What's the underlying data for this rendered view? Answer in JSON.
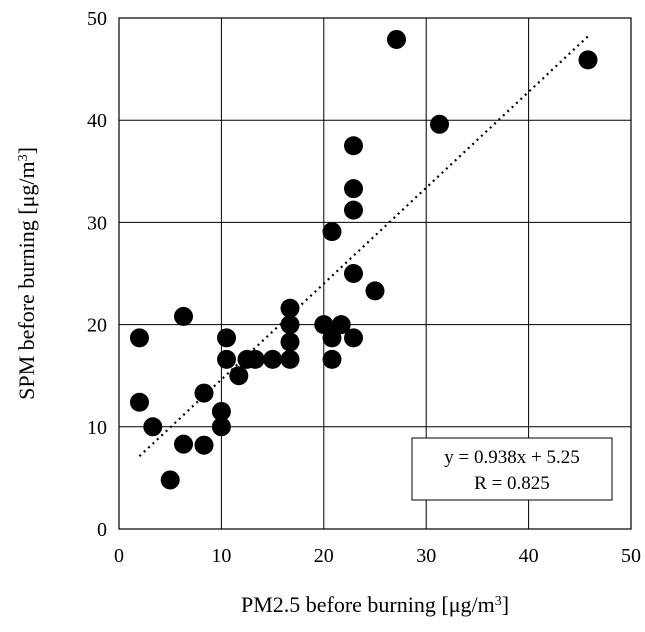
{
  "chart_data": {
    "type": "scatter",
    "xlabel": "PM2.5 before burning [μg/m",
    "xlabel_sup": "3",
    "xlabel_tail": "]",
    "ylabel": "SPM before burning [μg/m",
    "ylabel_sup": "3",
    "ylabel_tail": "]",
    "xlim": [
      0,
      50
    ],
    "ylim": [
      0,
      50
    ],
    "x_ticks": [
      0,
      10,
      20,
      30,
      40,
      50
    ],
    "y_ticks": [
      0,
      10,
      20,
      30,
      40,
      50
    ],
    "grid": true,
    "legend": "none",
    "marker_color": "#000000",
    "trendline": {
      "slope": 0.938,
      "intercept": 5.25,
      "x_range": [
        2,
        46
      ],
      "style": "dotted"
    },
    "annotation": {
      "line1": "y = 0.938x  + 5.25",
      "line2": "R = 0.825",
      "position": "bottom-right"
    },
    "points": [
      {
        "x": 2.0,
        "y": 18.7
      },
      {
        "x": 2.0,
        "y": 12.4
      },
      {
        "x": 3.3,
        "y": 10.0
      },
      {
        "x": 5.0,
        "y": 4.8
      },
      {
        "x": 6.3,
        "y": 20.8
      },
      {
        "x": 6.3,
        "y": 8.3
      },
      {
        "x": 8.3,
        "y": 13.3
      },
      {
        "x": 8.3,
        "y": 8.2
      },
      {
        "x": 10.0,
        "y": 11.5
      },
      {
        "x": 10.0,
        "y": 10.0
      },
      {
        "x": 10.5,
        "y": 18.7
      },
      {
        "x": 10.5,
        "y": 16.6
      },
      {
        "x": 11.7,
        "y": 15.0
      },
      {
        "x": 12.5,
        "y": 16.6
      },
      {
        "x": 13.3,
        "y": 16.6
      },
      {
        "x": 15.0,
        "y": 16.6
      },
      {
        "x": 16.7,
        "y": 21.6
      },
      {
        "x": 16.7,
        "y": 20.0
      },
      {
        "x": 16.7,
        "y": 18.3
      },
      {
        "x": 16.7,
        "y": 16.6
      },
      {
        "x": 20.0,
        "y": 20.0
      },
      {
        "x": 20.8,
        "y": 29.1
      },
      {
        "x": 20.8,
        "y": 18.7
      },
      {
        "x": 20.8,
        "y": 16.6
      },
      {
        "x": 21.7,
        "y": 20.0
      },
      {
        "x": 22.9,
        "y": 37.5
      },
      {
        "x": 22.9,
        "y": 33.3
      },
      {
        "x": 22.9,
        "y": 31.2
      },
      {
        "x": 22.9,
        "y": 25.0
      },
      {
        "x": 22.9,
        "y": 18.7
      },
      {
        "x": 25.0,
        "y": 23.3
      },
      {
        "x": 27.1,
        "y": 47.9
      },
      {
        "x": 31.3,
        "y": 39.6
      },
      {
        "x": 45.8,
        "y": 45.9
      }
    ]
  }
}
